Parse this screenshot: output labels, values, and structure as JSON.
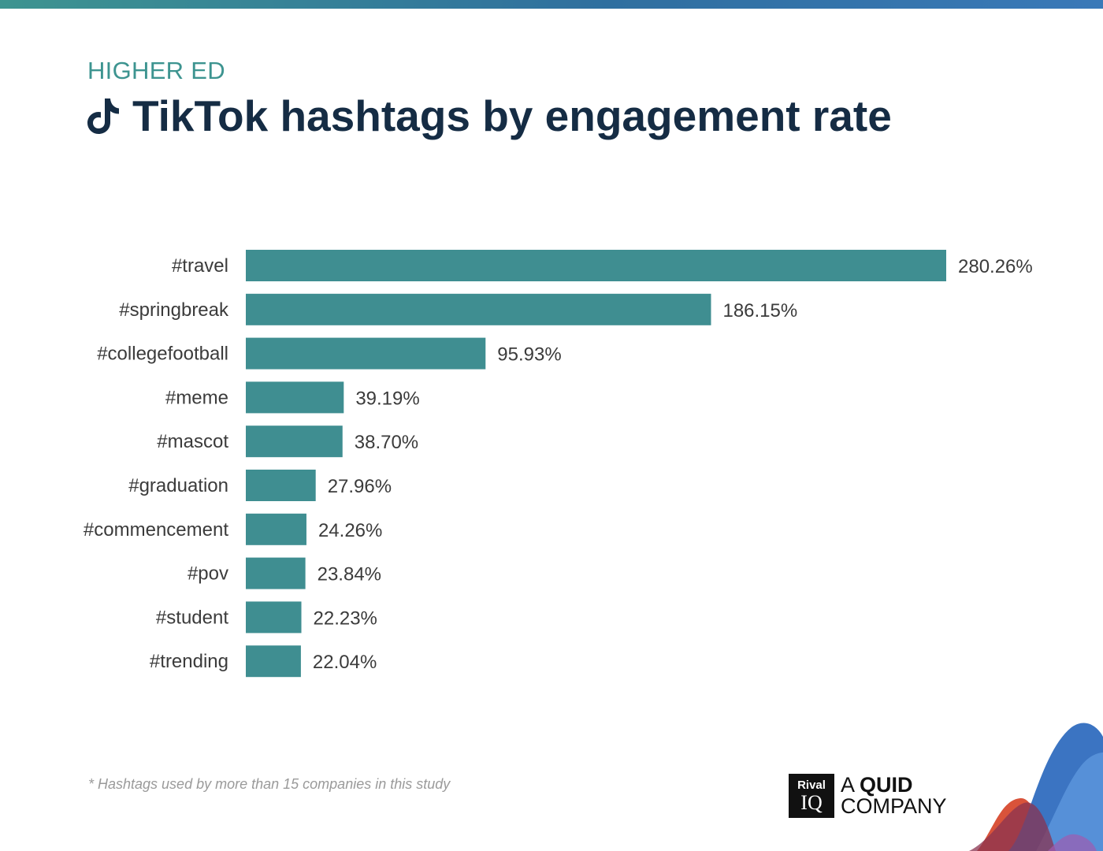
{
  "header": {
    "eyebrow": "HIGHER ED",
    "title": "TikTok hashtags by engagement rate"
  },
  "footnote": "* Hashtags used by more than 15 companies in this study",
  "brand": {
    "rival_top": "Rival",
    "rival_bottom": "IQ",
    "quid_prefix": "A",
    "quid_bold": "QUID",
    "quid_line2": "COMPANY"
  },
  "colors": {
    "bar": "#3f8e91",
    "title": "#152c44",
    "eyebrow": "#3d9490"
  },
  "chart_data": {
    "type": "bar",
    "orientation": "horizontal",
    "categories": [
      "#travel",
      "#springbreak",
      "#collegefootball",
      "#meme",
      "#mascot",
      "#graduation",
      "#commencement",
      "#pov",
      "#student",
      "#trending"
    ],
    "values": [
      280.26,
      186.15,
      95.93,
      39.19,
      38.7,
      27.96,
      24.26,
      23.84,
      22.23,
      22.04
    ],
    "value_labels": [
      "280.26%",
      "186.15%",
      "95.93%",
      "39.19%",
      "38.70%",
      "27.96%",
      "24.26%",
      "23.84%",
      "22.23%",
      "22.04%"
    ],
    "unit": "%",
    "title": "TikTok hashtags by engagement rate",
    "xlabel": "",
    "ylabel": "",
    "grid": false,
    "legend": "none"
  }
}
